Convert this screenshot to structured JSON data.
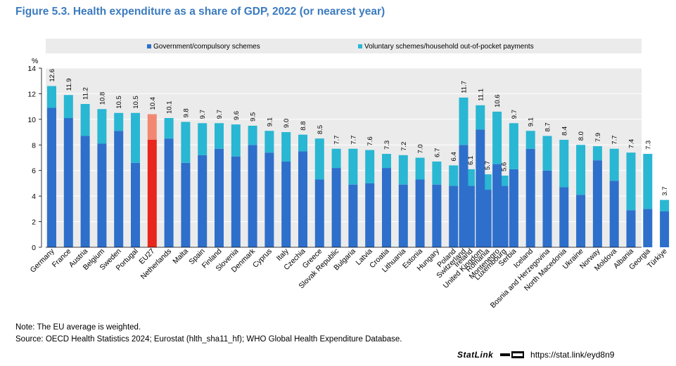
{
  "title": "Figure 5.3. Health expenditure as a share of GDP, 2022 (or nearest year)",
  "note": "Note: The EU average is weighted.",
  "source": "Source: OECD Health Statistics 2024; Eurostat (hlth_sha11_hf); WHO Global Health Expenditure Database.",
  "statlink": {
    "brand": "StatLink",
    "url": "https://stat.link/eyd8n9"
  },
  "colors": {
    "government": "#2e6fcb",
    "voluntary": "#29b7d3",
    "eu_government": "#e8261d",
    "eu_voluntary": "#f28872",
    "legend_bg": "#ebebeb",
    "grid": "#ffffff",
    "title": "#3b7bbf"
  },
  "chart_data": {
    "type": "bar",
    "stacked": true,
    "ylabel": "%",
    "ylim": [
      0,
      14
    ],
    "yticks": [
      0,
      2,
      4,
      6,
      8,
      10,
      12,
      14
    ],
    "legend_position": "top",
    "series": [
      {
        "name": "Government/compulsory schemes",
        "key": "government"
      },
      {
        "name": "Voluntary schemes/household out-of-pocket payments",
        "key": "voluntary"
      }
    ],
    "groups": [
      {
        "categories": [
          "Germany",
          "France",
          "Austria",
          "Belgium",
          "Sweden",
          "Portugal",
          "EU27",
          "Netherlands",
          "Malta",
          "Spain",
          "Finland",
          "Slovenia",
          "Denmark",
          "Cyprus",
          "Italy",
          "Czechia",
          "Greece",
          "Slovak Republic",
          "Bulgaria",
          "Latvia",
          "Croatia",
          "Lithuania",
          "Estonia",
          "Hungary",
          "Poland",
          "Ireland",
          "Romania",
          "Luxembourg"
        ],
        "government": [
          10.9,
          10.1,
          8.7,
          8.1,
          9.1,
          6.6,
          8.4,
          8.5,
          6.6,
          7.2,
          7.7,
          7.1,
          8.0,
          7.4,
          6.7,
          7.5,
          5.3,
          6.2,
          4.9,
          5.0,
          6.2,
          4.9,
          5.3,
          4.9,
          4.8,
          4.8,
          4.5,
          4.8
        ],
        "voluntary": [
          1.7,
          1.8,
          2.5,
          2.7,
          1.4,
          3.9,
          2.0,
          1.6,
          3.2,
          2.5,
          2.0,
          2.5,
          1.5,
          1.7,
          2.3,
          1.3,
          3.2,
          1.5,
          2.8,
          2.6,
          1.1,
          2.3,
          1.7,
          1.8,
          1.6,
          1.3,
          1.2,
          0.8
        ],
        "totals": [
          "12.6",
          "11.9",
          "11.2",
          "10.8",
          "10.5",
          "10.5",
          "10.4",
          "10.1",
          "9.8",
          "9.7",
          "9.7",
          "9.6",
          "9.5",
          "9.1",
          "9.0",
          "8.8",
          "8.5",
          "7.7",
          "7.7",
          "7.6",
          "7.3",
          "7.2",
          "7.0",
          "6.7",
          "6.4",
          "6.1",
          "5.7",
          "5.6"
        ]
      },
      {
        "categories": [
          "Switzerland",
          "United Kingdom",
          "Montenegro",
          "Serbia",
          "Iceland",
          "Bosnia and Herzegovina",
          "North Macedonia",
          "Ukraine",
          "Norway",
          "Moldova",
          "Albania",
          "Georgia",
          "Türkiye"
        ],
        "government": [
          8.0,
          9.2,
          6.5,
          6.1,
          7.7,
          6.0,
          4.7,
          4.1,
          6.8,
          5.2,
          2.9,
          3.0,
          2.8
        ],
        "voluntary": [
          3.7,
          1.9,
          4.1,
          3.6,
          1.4,
          2.7,
          3.7,
          3.9,
          1.1,
          2.5,
          4.5,
          4.3,
          0.9
        ],
        "totals": [
          "11.7",
          "11.1",
          "10.6",
          "9.7",
          "9.1",
          "8.7",
          "8.4",
          "8.0",
          "7.9",
          "7.7",
          "7.4",
          "7.3",
          "3.7"
        ]
      }
    ],
    "highlight": "EU27"
  }
}
